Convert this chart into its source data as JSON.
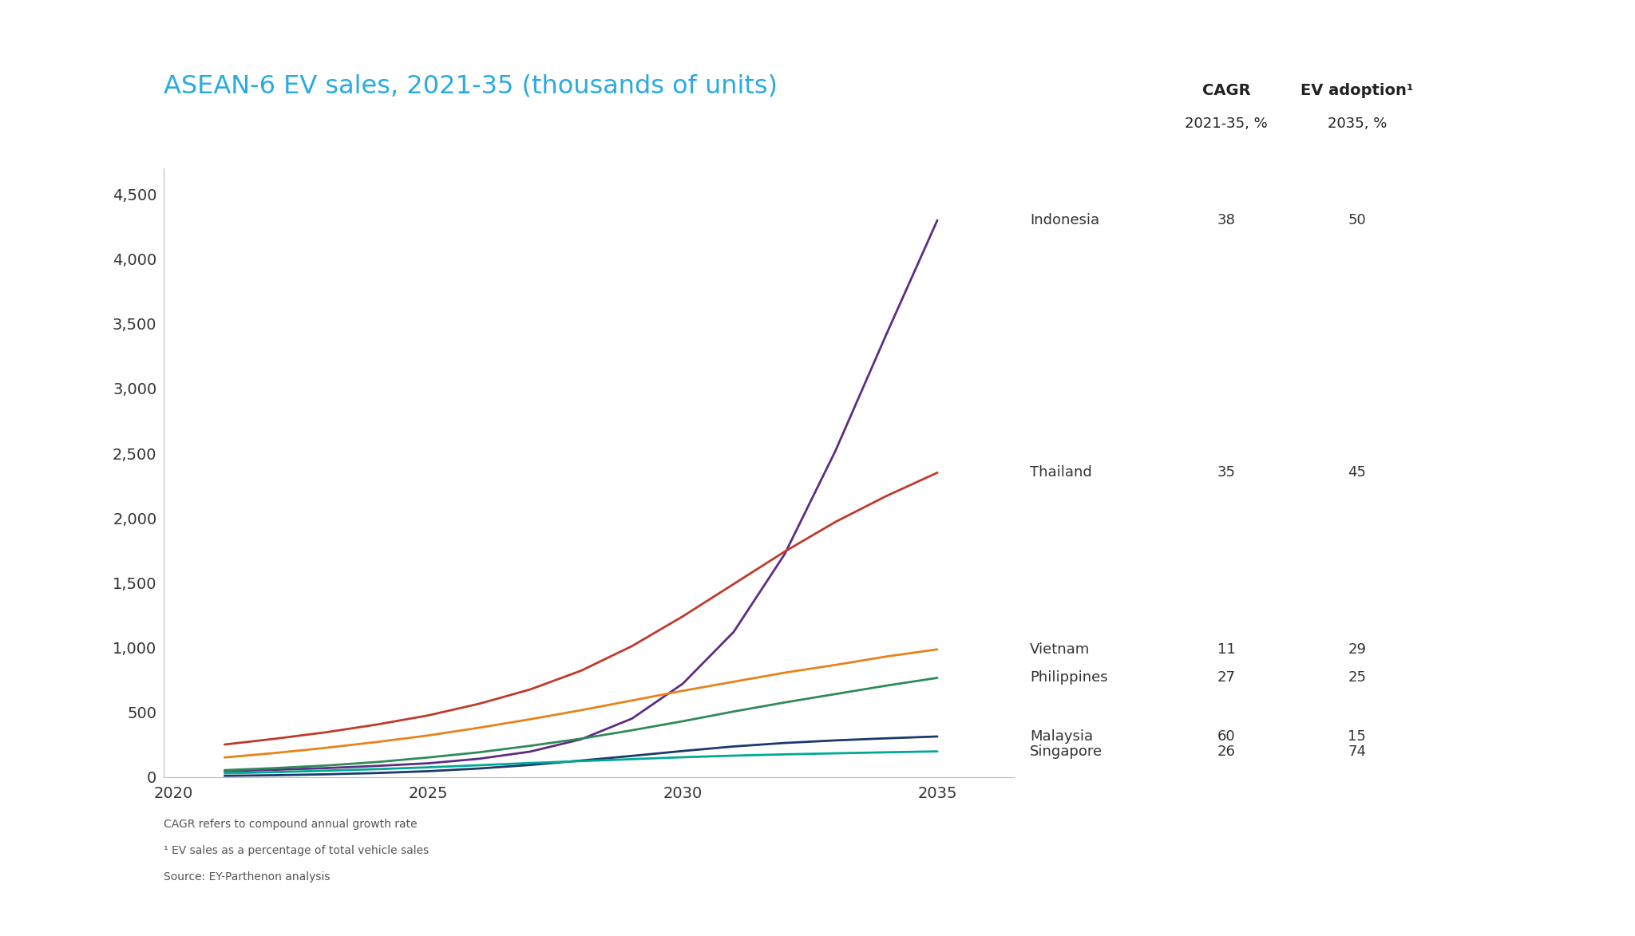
{
  "title": "ASEAN-6 EV sales, 2021-35 (thousands of units)",
  "title_color": "#29ABE2",
  "background_color": "#FFFFFF",
  "ylim": [
    0,
    4700
  ],
  "yticks": [
    0,
    500,
    1000,
    1500,
    2000,
    2500,
    3000,
    3500,
    4000,
    4500
  ],
  "xticks": [
    2020,
    2025,
    2030,
    2035
  ],
  "xlim": [
    2019.8,
    2036.5
  ],
  "series": [
    {
      "name": "Indonesia",
      "color": "#5C2D82",
      "cagr": "38",
      "ev_adoption": "50",
      "data_x": [
        2021,
        2022,
        2023,
        2024,
        2025,
        2026,
        2027,
        2028,
        2029,
        2030,
        2031,
        2032,
        2033,
        2034,
        2035
      ],
      "data_y": [
        45,
        55,
        68,
        85,
        105,
        140,
        195,
        290,
        450,
        720,
        1120,
        1720,
        2520,
        3420,
        4300
      ]
    },
    {
      "name": "Thailand",
      "color": "#C0392B",
      "cagr": "35",
      "ev_adoption": "45",
      "data_x": [
        2021,
        2022,
        2023,
        2024,
        2025,
        2026,
        2027,
        2028,
        2029,
        2030,
        2031,
        2032,
        2033,
        2034,
        2035
      ],
      "data_y": [
        250,
        295,
        345,
        405,
        475,
        565,
        675,
        820,
        1010,
        1240,
        1490,
        1740,
        1970,
        2170,
        2350
      ]
    },
    {
      "name": "Vietnam",
      "color": "#E8821A",
      "cagr": "11",
      "ev_adoption": "29",
      "data_x": [
        2021,
        2022,
        2023,
        2024,
        2025,
        2026,
        2027,
        2028,
        2029,
        2030,
        2031,
        2032,
        2033,
        2034,
        2035
      ],
      "data_y": [
        150,
        185,
        225,
        270,
        320,
        380,
        445,
        515,
        590,
        665,
        735,
        805,
        865,
        930,
        985
      ]
    },
    {
      "name": "Philippines",
      "color": "#2E8B57",
      "cagr": "27",
      "ev_adoption": "25",
      "data_x": [
        2021,
        2022,
        2023,
        2024,
        2025,
        2026,
        2027,
        2028,
        2029,
        2030,
        2031,
        2032,
        2033,
        2034,
        2035
      ],
      "data_y": [
        52,
        68,
        88,
        115,
        150,
        190,
        240,
        295,
        360,
        430,
        505,
        575,
        640,
        705,
        765
      ]
    },
    {
      "name": "Malaysia",
      "color": "#1A3A6B",
      "cagr": "60",
      "ev_adoption": "15",
      "data_x": [
        2021,
        2022,
        2023,
        2024,
        2025,
        2026,
        2027,
        2028,
        2029,
        2030,
        2031,
        2032,
        2033,
        2034,
        2035
      ],
      "data_y": [
        8,
        13,
        20,
        30,
        44,
        65,
        92,
        126,
        162,
        200,
        235,
        262,
        282,
        298,
        312
      ]
    },
    {
      "name": "Singapore",
      "color": "#00A896",
      "cagr": "26",
      "ev_adoption": "74",
      "data_x": [
        2021,
        2022,
        2023,
        2024,
        2025,
        2026,
        2027,
        2028,
        2029,
        2030,
        2031,
        2032,
        2033,
        2034,
        2035
      ],
      "data_y": [
        28,
        37,
        48,
        60,
        74,
        90,
        107,
        122,
        137,
        152,
        164,
        174,
        182,
        190,
        197
      ]
    }
  ],
  "label_info": [
    {
      "name": "Indonesia",
      "y_data": 4300,
      "cagr": "38",
      "ev": "50"
    },
    {
      "name": "Thailand",
      "y_data": 2350,
      "cagr": "35",
      "ev": "45"
    },
    {
      "name": "Vietnam",
      "y_data": 985,
      "cagr": "11",
      "ev": "29"
    },
    {
      "name": "Philippines",
      "y_data": 765,
      "cagr": "27",
      "ev": "25"
    },
    {
      "name": "Malaysia",
      "y_data": 312,
      "cagr": "60",
      "ev": "15"
    },
    {
      "name": "Singapore",
      "y_data": 197,
      "cagr": "26",
      "ev": "74"
    }
  ],
  "footnotes": [
    "CAGR refers to compound annual growth rate",
    "¹ EV sales as a percentage of total vehicle sales",
    "Source: EY-Parthenon analysis"
  ]
}
